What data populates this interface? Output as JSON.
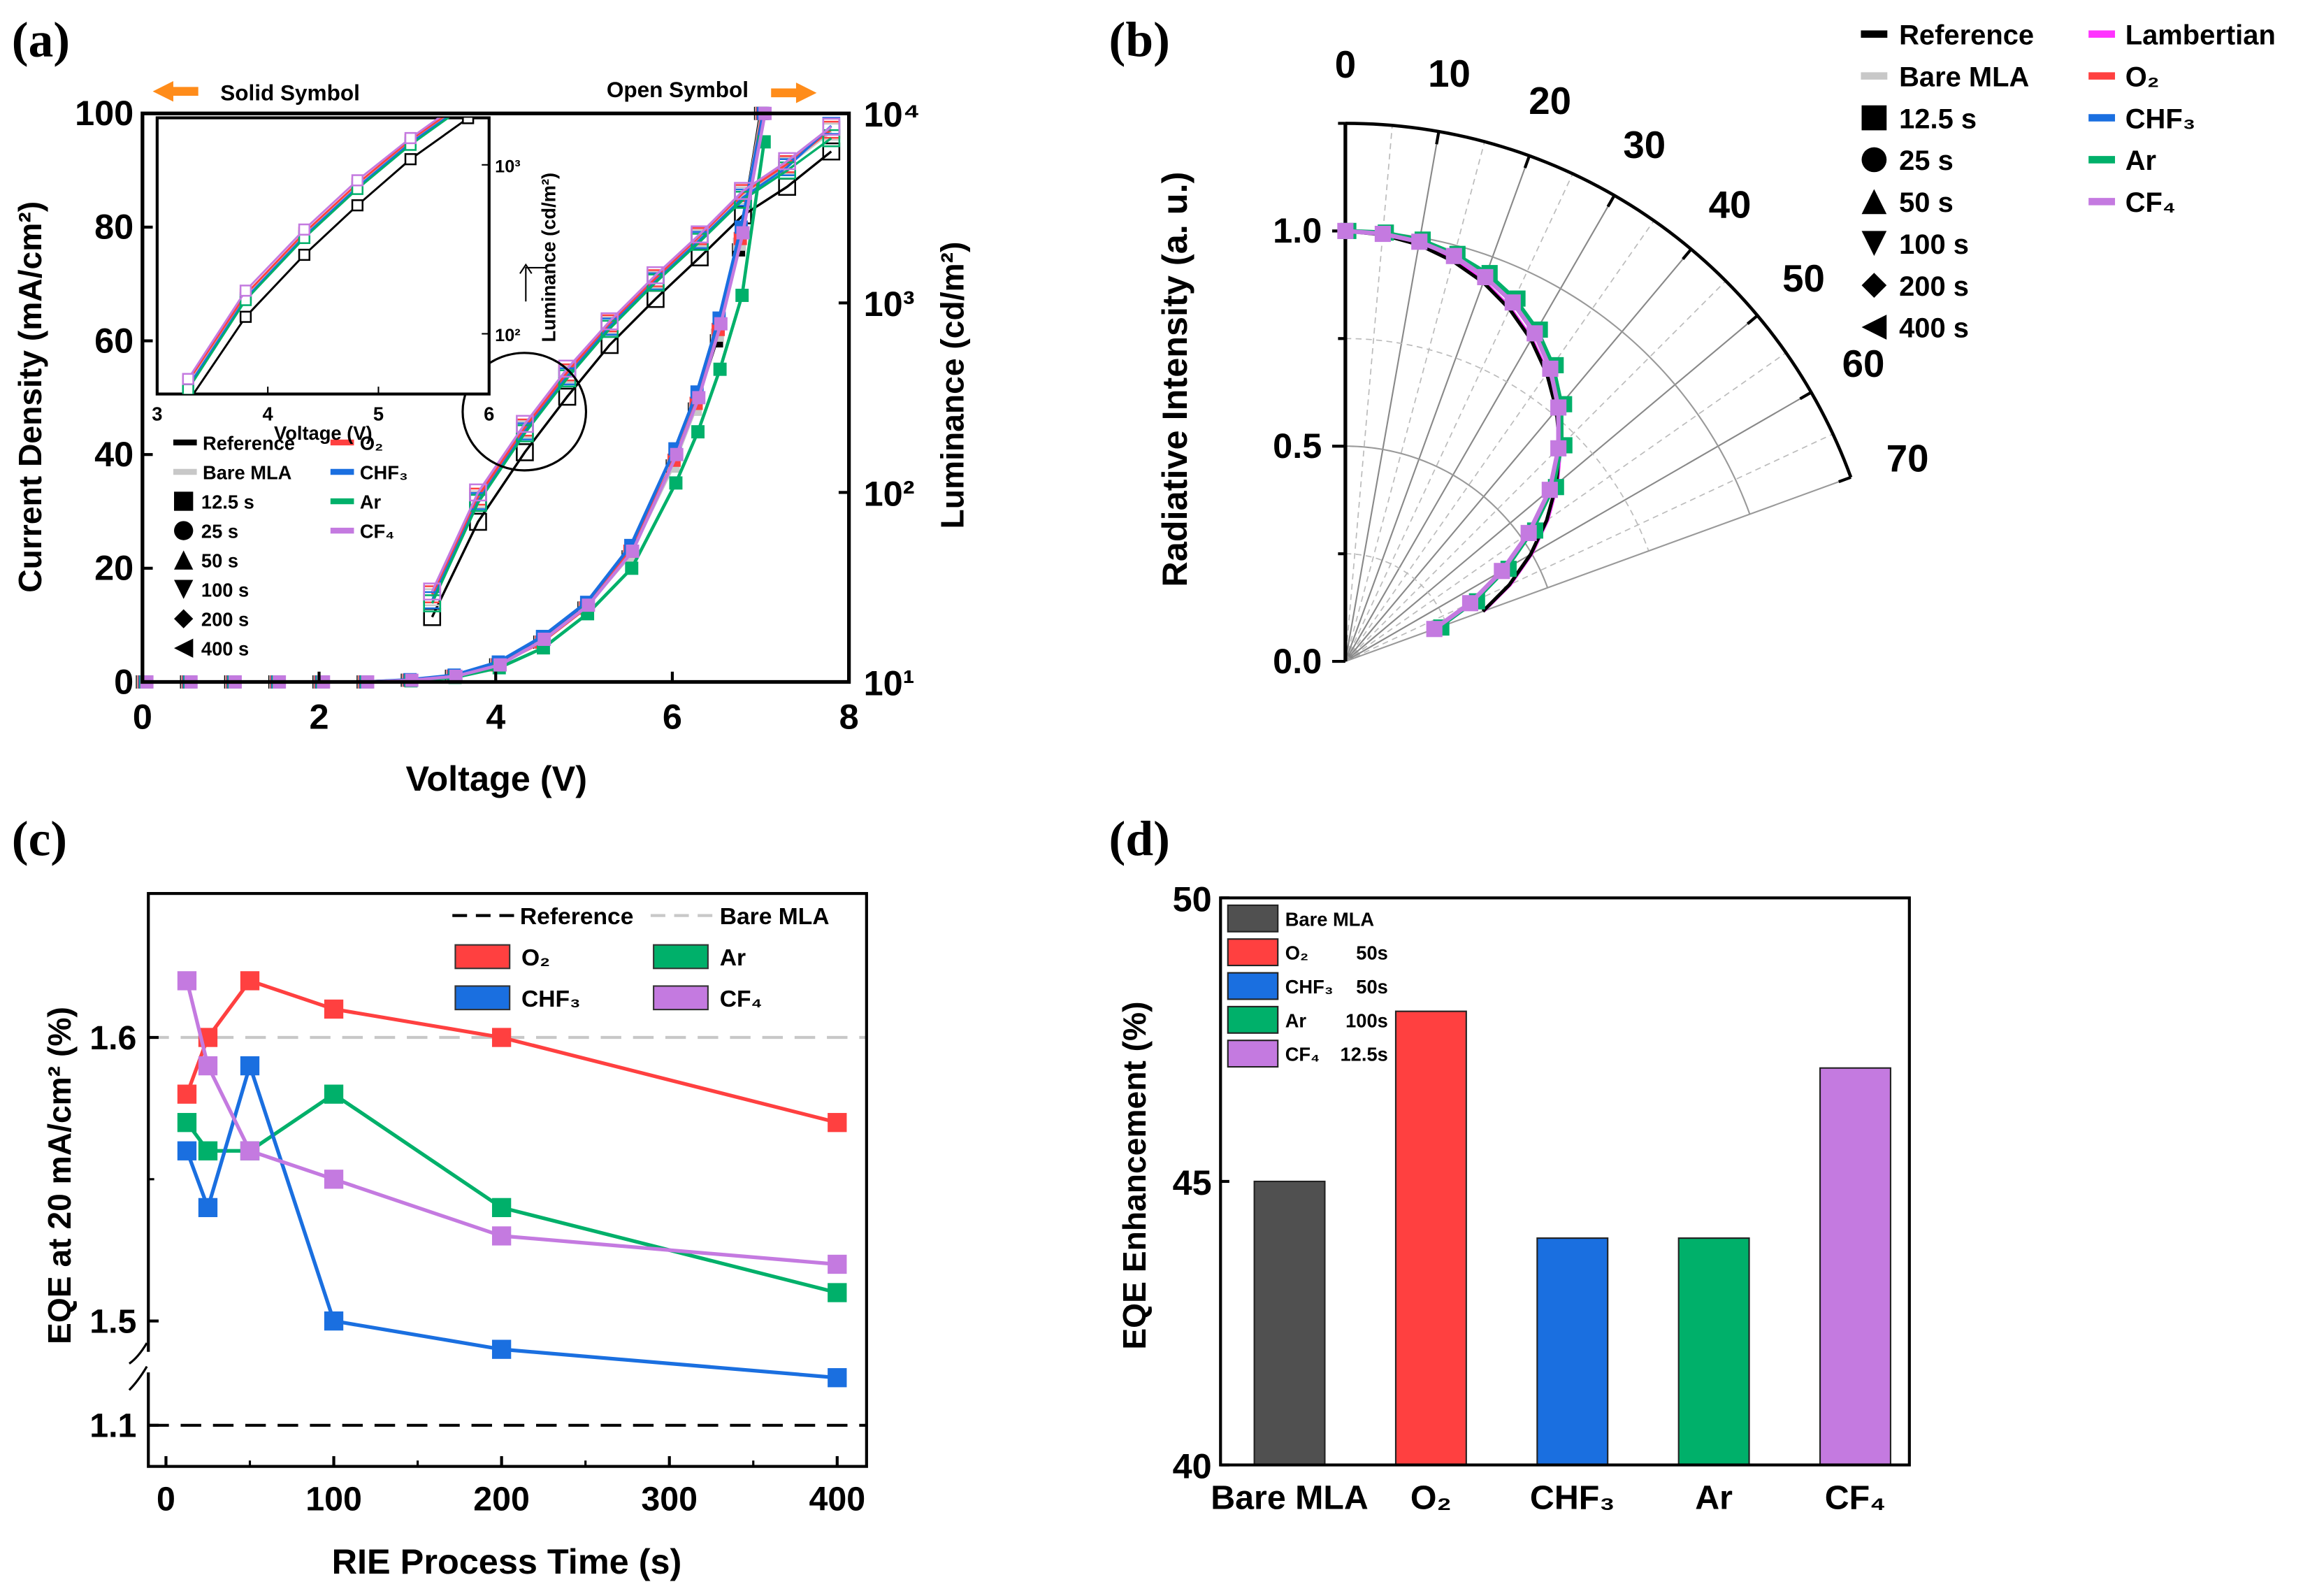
{
  "colors": {
    "reference": "#000000",
    "bare_mla": "#c8c8c8",
    "lambertian": "#ff33ff",
    "O2": "#ff4040",
    "CHF3": "#1a6fe0",
    "Ar": "#00b06a",
    "CF4": "#c47ae0",
    "bar_bare": "#505050",
    "arrow": "#ff8c1a"
  },
  "chart_data": [
    {
      "panel": "(a)",
      "type": "line",
      "xlabel": "Voltage (V)",
      "ylabel": "Current Density (mA/cm²)",
      "y2label": "Luminance (cd/m²)",
      "xlim": [
        0,
        8
      ],
      "ylim": [
        0,
        100
      ],
      "y2lim": [
        10,
        10000
      ],
      "y2scale": "log",
      "xticks": [
        "0",
        "2",
        "4",
        "6",
        "8"
      ],
      "yticks": [
        "0",
        "20",
        "40",
        "60",
        "80",
        "100"
      ],
      "y2ticks": [
        "10¹",
        "10²",
        "10³",
        "10⁴"
      ],
      "annotations": {
        "solid": "Solid Symbol",
        "open": "Open Symbol"
      },
      "legend_lines": [
        {
          "name": "Reference",
          "color": "reference"
        },
        {
          "name": "Bare MLA",
          "color": "bare_mla"
        },
        {
          "name": "O₂",
          "color": "O2"
        },
        {
          "name": "CHF₃",
          "color": "CHF3"
        },
        {
          "name": "Ar",
          "color": "Ar"
        },
        {
          "name": "CF₄",
          "color": "CF4"
        }
      ],
      "legend_symbols": [
        {
          "name": "12.5 s",
          "shape": "square"
        },
        {
          "name": "25 s",
          "shape": "circle"
        },
        {
          "name": "50 s",
          "shape": "triangle-up"
        },
        {
          "name": "100 s",
          "shape": "triangle-down"
        },
        {
          "name": "200 s",
          "shape": "diamond"
        },
        {
          "name": "400 s",
          "shape": "triangle-left"
        }
      ],
      "jv_voltage": [
        0,
        0.5,
        1,
        1.5,
        2,
        2.5,
        3,
        3.5,
        4,
        4.5,
        5,
        5.5,
        6,
        6.25,
        6.5,
        6.75,
        7
      ],
      "lv_voltage": [
        3.28,
        3.8,
        4.33,
        4.81,
        5.29,
        5.81,
        6.31,
        6.8,
        7.3,
        7.8
      ],
      "series": [
        {
          "name": "Reference",
          "color": "reference",
          "J": [
            0,
            0,
            0,
            0,
            0,
            0,
            0.3,
            1,
            3,
            7,
            13,
            22,
            38,
            48,
            60,
            76,
            100
          ],
          "L": [
            22,
            70,
            163,
            320,
            600,
            1050,
            1740,
            2900,
            4100,
            6300
          ]
        },
        {
          "name": "Bare MLA",
          "color": "bare_mla",
          "J": [
            0,
            0,
            0,
            0,
            0,
            0,
            0.3,
            1,
            3,
            7,
            13,
            22,
            38,
            48,
            61,
            77,
            100
          ],
          "L": [
            28,
            92,
            215,
            420,
            760,
            1320,
            2200,
            3700,
            5300,
            8000
          ]
        },
        {
          "name": "O₂",
          "color": "O2",
          "J": [
            0,
            0,
            0,
            0,
            0,
            0,
            0.3,
            1,
            3,
            7,
            13,
            23,
            39,
            49,
            62,
            78,
            100
          ],
          "L": [
            29,
            95,
            220,
            430,
            780,
            1350,
            2250,
            3800,
            5400,
            8200
          ]
        },
        {
          "name": "CHF₃",
          "color": "CHF3",
          "J": [
            0,
            0,
            0,
            0,
            0,
            0,
            0.4,
            1.2,
            3.5,
            8,
            14,
            24,
            41,
            51,
            64,
            80,
            100
          ],
          "L": [
            27,
            90,
            210,
            410,
            750,
            1300,
            2150,
            3600,
            5200,
            8600
          ]
        },
        {
          "name": "Ar",
          "color": "Ar",
          "J": [
            0,
            0,
            0,
            0,
            0,
            0,
            0.2,
            0.8,
            2.5,
            6,
            12,
            20,
            35,
            44,
            55,
            68,
            95
          ],
          "L": [
            26,
            88,
            205,
            400,
            730,
            1280,
            2100,
            3500,
            5000,
            7400
          ]
        },
        {
          "name": "CF₄",
          "color": "CF4",
          "J": [
            0,
            0,
            0,
            0,
            0,
            0,
            0.3,
            1,
            3,
            7.5,
            13.5,
            23,
            40,
            50,
            63,
            79,
            100
          ],
          "L": [
            30,
            100,
            230,
            450,
            800,
            1400,
            2300,
            3900,
            5600,
            8500
          ]
        }
      ],
      "inset": {
        "xlabel": "Voltage (V)",
        "ylabel": "Luminance (cd/m²)",
        "xlim": [
          3,
          6
        ],
        "xticks": [
          "3",
          "4",
          "5",
          "6"
        ],
        "yticks": [
          "10²",
          "10³"
        ]
      }
    },
    {
      "panel": "(b)",
      "type": "polar",
      "ylabel": "Radiative Intensity (a. u.)",
      "rlim": [
        0,
        1.25
      ],
      "rticks": [
        "0.0",
        "0.5",
        "1.0"
      ],
      "angle_ticks": [
        "0",
        "10",
        "20",
        "30",
        "40",
        "50",
        "60",
        "70"
      ],
      "legend_col1": [
        {
          "name": "Reference",
          "kind": "line",
          "color": "reference"
        },
        {
          "name": "Bare MLA",
          "kind": "line",
          "color": "bare_mla"
        },
        {
          "name": "12.5 s",
          "kind": "square"
        },
        {
          "name": "25 s",
          "kind": "circle"
        },
        {
          "name": "50 s",
          "kind": "triangle-up"
        },
        {
          "name": "100 s",
          "kind": "triangle-down"
        },
        {
          "name": "200 s",
          "kind": "diamond"
        },
        {
          "name": "400 s",
          "kind": "triangle-left"
        }
      ],
      "legend_col2": [
        {
          "name": "Lambertian",
          "color": "lambertian"
        },
        {
          "name": "O₂",
          "color": "O2"
        },
        {
          "name": "CHF₃",
          "color": "CHF3"
        },
        {
          "name": "Ar",
          "color": "Ar"
        },
        {
          "name": "CF₄",
          "color": "CF4"
        }
      ],
      "angles": [
        0,
        5,
        10,
        15,
        20,
        25,
        30,
        35,
        40,
        45,
        50,
        55,
        60,
        65,
        70
      ],
      "series": [
        {
          "name": "Lambertian",
          "color": "lambertian",
          "r": [
            1,
            0.996,
            0.985,
            0.966,
            0.94,
            0.906,
            0.866,
            0.819,
            0.766,
            0.707,
            0.643,
            0.574,
            0.5,
            0.423,
            0.342
          ]
        },
        {
          "name": "Reference",
          "color": "reference",
          "r": [
            1,
            0.995,
            0.983,
            0.963,
            0.937,
            0.903,
            0.863,
            0.816,
            0.763,
            0.704,
            0.64,
            0.571,
            0.497,
            0.42,
            0.34
          ]
        },
        {
          "name": "Ar",
          "color": "Ar",
          "r": [
            1,
            1.0,
            0.995,
            0.98,
            0.96,
            0.93,
            0.89,
            0.84,
            0.78,
            0.71,
            0.63,
            0.53,
            0.43,
            0.33,
            0.23
          ]
        },
        {
          "name": "CF₄",
          "color": "CF4",
          "r": [
            1,
            0.997,
            0.99,
            0.975,
            0.95,
            0.92,
            0.88,
            0.83,
            0.77,
            0.7,
            0.62,
            0.52,
            0.42,
            0.32,
            0.22
          ]
        }
      ]
    },
    {
      "panel": "(c)",
      "type": "line",
      "xlabel": "RIE Process Time (s)",
      "ylabel": "EQE at 20 mA/cm² (%)",
      "xlim": [
        -10,
        420
      ],
      "ylim": [
        1.05,
        1.65
      ],
      "axis_break": [
        1.1,
        1.47
      ],
      "xticks": [
        "0",
        "100",
        "200",
        "300",
        "400"
      ],
      "yticks": [
        "1.1",
        "1.5",
        "1.6"
      ],
      "x": [
        12.5,
        25,
        50,
        100,
        200,
        400
      ],
      "reference_lines": [
        {
          "name": "Reference",
          "value": 1.1,
          "color": "reference"
        },
        {
          "name": "Bare MLA",
          "value": 1.6,
          "color": "bare_mla"
        }
      ],
      "series": [
        {
          "name": "O₂",
          "color": "O2",
          "values": [
            1.58,
            1.6,
            1.62,
            1.61,
            1.6,
            1.57
          ]
        },
        {
          "name": "Ar",
          "color": "Ar",
          "values": [
            1.57,
            1.56,
            1.56,
            1.58,
            1.54,
            1.51
          ]
        },
        {
          "name": "CHF₃",
          "color": "CHF3",
          "values": [
            1.56,
            1.54,
            1.59,
            1.5,
            1.49,
            1.48
          ]
        },
        {
          "name": "CF₄",
          "color": "CF4",
          "values": [
            1.62,
            1.59,
            1.56,
            1.55,
            1.53,
            1.52
          ]
        }
      ]
    },
    {
      "panel": "(d)",
      "type": "bar",
      "ylabel": "EQE Enhancement (%)",
      "ylim": [
        40,
        50
      ],
      "yticks": [
        "40",
        "45",
        "50"
      ],
      "categories": [
        "Bare MLA",
        "O₂",
        "CHF₃",
        "Ar",
        "CF₄"
      ],
      "values": [
        45,
        48,
        44,
        44,
        47
      ],
      "bar_colors": [
        "bar_bare",
        "O2",
        "CHF3",
        "Ar",
        "CF4"
      ],
      "legend": [
        {
          "name": "Bare MLA",
          "time": ""
        },
        {
          "name": "O₂",
          "time": "50s"
        },
        {
          "name": "CHF₃",
          "time": "50s"
        },
        {
          "name": "Ar",
          "time": "100s"
        },
        {
          "name": "CF₄",
          "time": "12.5s"
        }
      ]
    }
  ]
}
